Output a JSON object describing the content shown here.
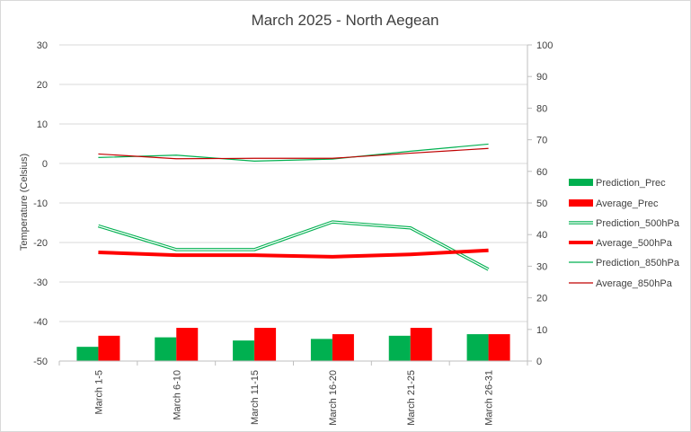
{
  "chart_data": {
    "type": "bar",
    "title": "March 2025 - North Aegean",
    "ylabel": "Temperature (Celsius)",
    "y2label": "",
    "ylim": [
      -50,
      30
    ],
    "y2lim": [
      0,
      100
    ],
    "yticks": [
      "30",
      "20",
      "10",
      "0",
      "-10",
      "-20",
      "-30",
      "-40",
      "-50"
    ],
    "y2ticks": [
      "100",
      "90",
      "80",
      "70",
      "60",
      "50",
      "40",
      "30",
      "20",
      "10",
      "0"
    ],
    "grid": true,
    "legend_position": "right",
    "categories": [
      "March 1-5",
      "March 6-10",
      "March 11-15",
      "March 16-20",
      "March 21-25",
      "March 26-31"
    ],
    "series": [
      {
        "name": "Prediction_Prec",
        "kind": "bar",
        "axis": "right",
        "color": "#00b050",
        "values": [
          4.5,
          7.5,
          6.5,
          7.0,
          8.0,
          8.5
        ]
      },
      {
        "name": "Average_Prec",
        "kind": "bar",
        "axis": "right",
        "color": "#ff0000",
        "values": [
          8.0,
          10.5,
          10.5,
          8.5,
          10.5,
          8.5
        ]
      },
      {
        "name": "Prediction_500hPa",
        "kind": "line",
        "style": "double",
        "axis": "left",
        "color": "#00b050",
        "values": [
          -15.8,
          -21.8,
          -21.8,
          -14.8,
          -16.3,
          -26.8
        ]
      },
      {
        "name": "Average_500hPa",
        "kind": "line",
        "style": "thick",
        "axis": "left",
        "color": "#ff0000",
        "values": [
          -22.5,
          -23.2,
          -23.2,
          -23.6,
          -23.0,
          -22.0
        ]
      },
      {
        "name": "Prediction_850hPa",
        "kind": "line",
        "style": "thin",
        "axis": "left",
        "color": "#00b050",
        "values": [
          1.5,
          2.1,
          0.6,
          1.1,
          3.1,
          4.9
        ]
      },
      {
        "name": "Average_850hPa",
        "kind": "line",
        "style": "thin",
        "axis": "left",
        "color": "#c00000",
        "values": [
          2.4,
          1.2,
          1.3,
          1.3,
          2.6,
          3.8
        ]
      }
    ]
  }
}
